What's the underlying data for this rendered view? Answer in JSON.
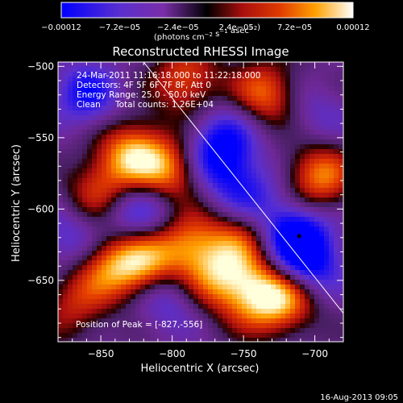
{
  "chart_data": {
    "type": "heatmap",
    "title": "Reconstructed RHESSI Image",
    "xlabel": "Heliocentric X (arcsec)",
    "ylabel": "Heliocentric Y (arcsec)",
    "xlim": [
      -880,
      -680
    ],
    "ylim": [
      -693,
      -497
    ],
    "xticks": [
      -850,
      -800,
      -750,
      -700
    ],
    "yticks": [
      -500,
      -550,
      -600,
      -650
    ],
    "colorbar": {
      "min": -0.00012,
      "max": 0.00012,
      "tick_labels": [
        "-0.00012",
        "-7.2e-05",
        "-2.4e-05",
        "2.4e-05",
        "7.2e-05",
        "0.00012"
      ],
      "unit_label": "(photons cm^-2 s^-1 asec^-2)",
      "colors": [
        "#0000ff",
        "#7a2ea8",
        "#000000",
        "#c01010",
        "#ff7a00",
        "#ffffff"
      ]
    },
    "annotations": [
      "24-Mar-2011 11:16:18.000 to 11:22:18.000",
      "Detectors: 4F 5F 6F 7F 8F, Att 0",
      "Energy Range: 25.0 - 50.0 keV",
      "Clean",
      "Total counts: 1.26E+04"
    ],
    "peak_label": "Position of Peak = [-827,-556]",
    "peak": {
      "x": -827,
      "y": -556
    },
    "limb_line": {
      "x": [
        -820,
        -680
      ],
      "y": [
        -497,
        -673
      ]
    },
    "blobs": [
      {
        "x": -850,
        "y": -590,
        "v": 0.0001
      },
      {
        "x": -847,
        "y": -640,
        "v": 9e-05
      },
      {
        "x": -828,
        "y": -562,
        "v": 0.00012
      },
      {
        "x": -820,
        "y": -640,
        "v": 0.00012
      },
      {
        "x": -800,
        "y": -575,
        "v": 0.00011
      },
      {
        "x": -790,
        "y": -625,
        "v": 0.0001
      },
      {
        "x": -768,
        "y": -648,
        "v": 9e-05
      },
      {
        "x": -752,
        "y": -620,
        "v": 8e-05
      },
      {
        "x": -742,
        "y": -660,
        "v": 0.0001
      },
      {
        "x": -720,
        "y": -662,
        "v": 0.00011
      },
      {
        "x": -697,
        "y": -577,
        "v": 0.00011
      },
      {
        "x": -790,
        "y": -510,
        "v": 9e-05
      },
      {
        "x": -735,
        "y": -520,
        "v": 0.0001
      },
      {
        "x": -870,
        "y": -670,
        "v": 6e-05
      },
      {
        "x": -810,
        "y": -600,
        "v": -5e-05
      },
      {
        "x": -770,
        "y": -565,
        "v": -9e-05
      },
      {
        "x": -748,
        "y": -590,
        "v": -7e-05
      },
      {
        "x": -715,
        "y": -618,
        "v": -0.00011
      },
      {
        "x": -705,
        "y": -640,
        "v": -0.0001
      },
      {
        "x": -860,
        "y": -520,
        "v": -8e-05
      },
      {
        "x": -835,
        "y": -600,
        "v": -7e-05
      },
      {
        "x": -805,
        "y": -660,
        "v": -7e-05
      },
      {
        "x": -870,
        "y": -620,
        "v": -6e-05
      },
      {
        "x": -760,
        "y": -545,
        "v": -5e-05
      },
      {
        "x": -700,
        "y": -535,
        "v": -4e-05
      }
    ]
  },
  "footer": {
    "date": "16-Aug-2013 09:05"
  }
}
